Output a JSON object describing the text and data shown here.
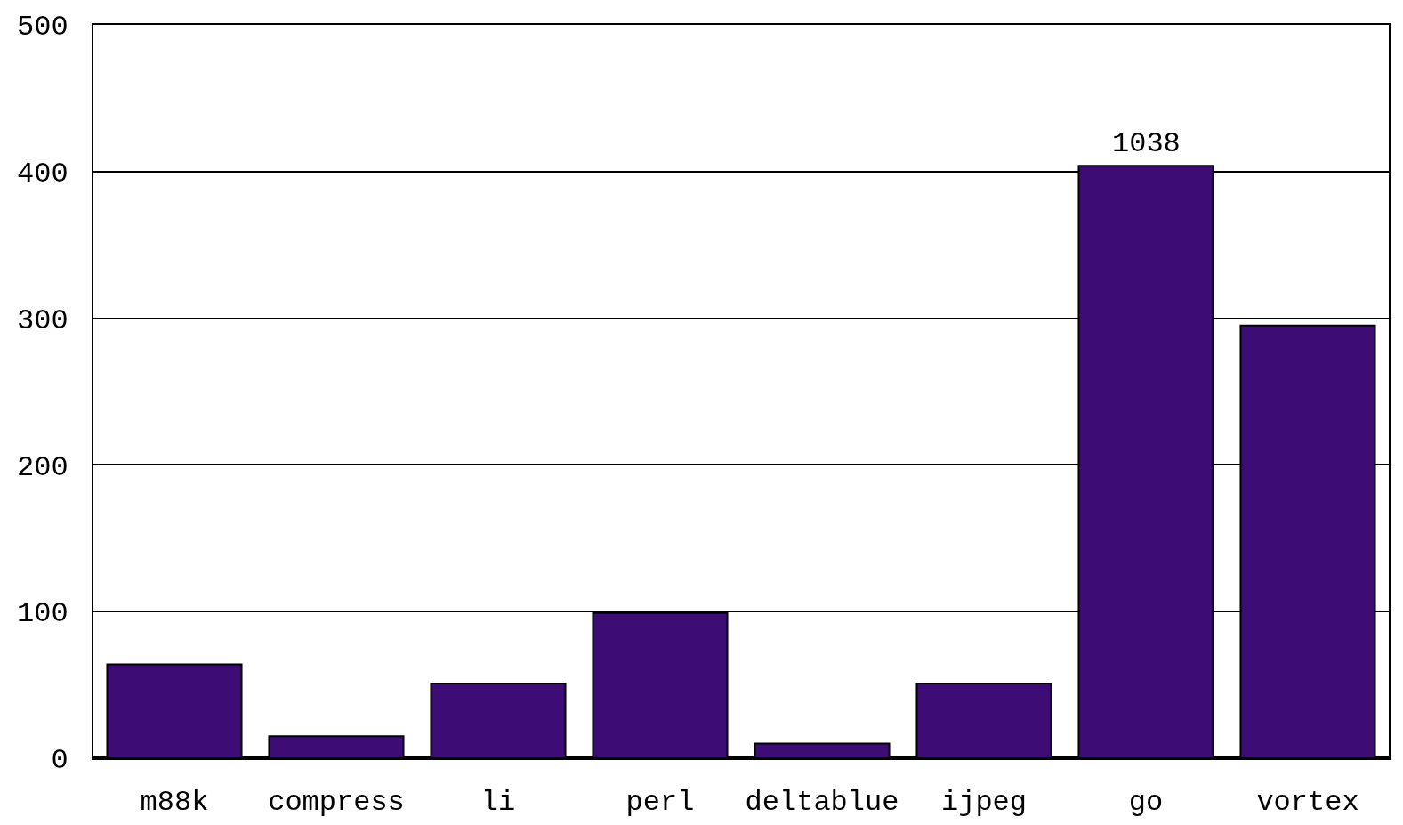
{
  "chart_data": {
    "type": "bar",
    "categories": [
      "m88k",
      "compress",
      "li",
      "perl",
      "deltablue",
      "ijpeg",
      "go",
      "vortex"
    ],
    "values": [
      64,
      15,
      51,
      99,
      10,
      51,
      404,
      295
    ],
    "color": "#3d0c74",
    "ylim": [
      0,
      500
    ],
    "yticks": [
      0,
      100,
      200,
      300,
      400,
      500
    ],
    "grid": "y",
    "annotations": [
      {
        "text": "1038",
        "x": "go",
        "y": 404
      }
    ]
  }
}
